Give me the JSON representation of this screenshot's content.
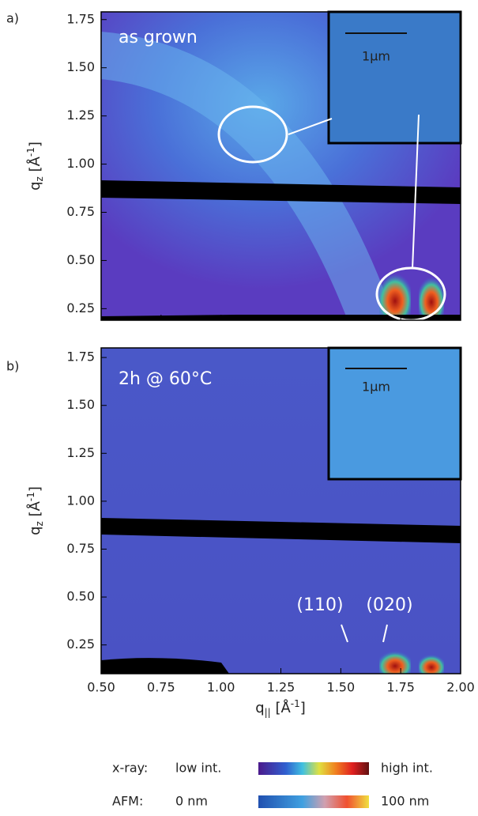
{
  "figure": {
    "x_axis": {
      "xlim": [
        0.5,
        2.0
      ],
      "xticks": [
        {
          "value": 0.5,
          "label": "0.50"
        },
        0.75,
        {
          "value": 1.0,
          "label": "1.00"
        },
        1.25,
        {
          "value": 1.5,
          "label": "1.50"
        },
        1.75,
        {
          "value": 2.0,
          "label": "2.00"
        }
      ],
      "label": {
        "base": "q",
        "sub": "||",
        "unit": " [Å",
        "sup": "-1",
        "close": "]"
      }
    },
    "y_label": {
      "base": "q",
      "sub": "z",
      "unit": " [Å",
      "sup": "-1",
      "close": "]"
    },
    "panels": [
      {
        "label": "a)",
        "annotation": "as grown",
        "scale_bar": "1µm",
        "ylim": [
          0.19,
          1.79
        ],
        "yticks": [
          0.25,
          {
            "value": 0.5,
            "label": "0.50"
          },
          0.75,
          {
            "value": 1.0,
            "label": "1.00"
          },
          1.25,
          {
            "value": 1.5,
            "label": "1.50"
          },
          1.75
        ]
      },
      {
        "label": "b)",
        "annotation": "2h @ 60°C",
        "scale_bar": "1µm",
        "ylim": [
          0.1,
          1.8
        ],
        "yticks": [
          0.25,
          {
            "value": 0.5,
            "label": "0.50"
          },
          0.75,
          {
            "value": 1.0,
            "label": "1.00"
          },
          1.25,
          {
            "value": 1.5,
            "label": "1.50"
          },
          1.75
        ],
        "peaks": [
          "(110)",
          "(020)"
        ]
      }
    ],
    "legend": {
      "xray": {
        "name": "x-ray:",
        "low": "low int.",
        "high": "high int."
      },
      "afm": {
        "name": "AFM:",
        "low": "0 nm",
        "high": "100 nm"
      }
    }
  }
}
